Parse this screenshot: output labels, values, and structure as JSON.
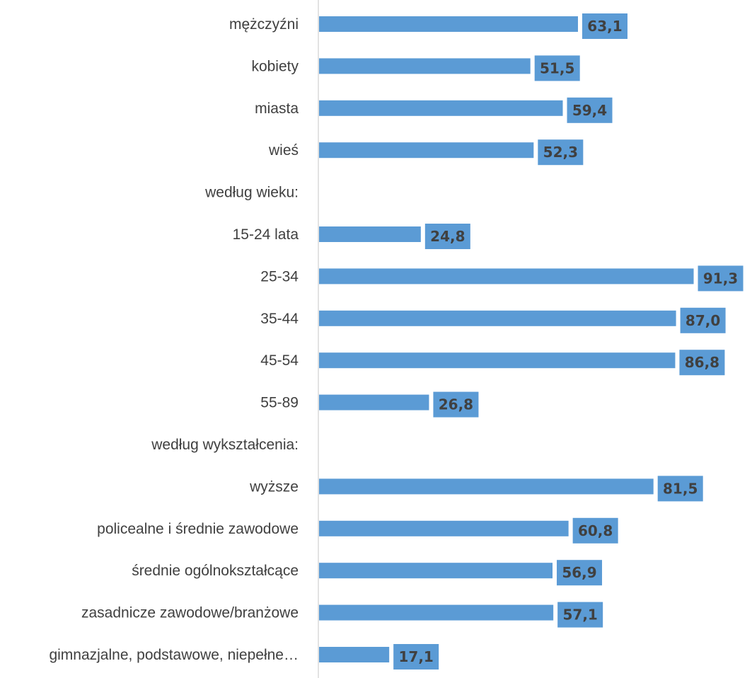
{
  "chart_data": {
    "type": "bar",
    "orientation": "horizontal",
    "categories": [
      "mężczyźni",
      "kobiety",
      "miasta",
      "wieś",
      "według wieku:",
      "15-24 lata",
      "25-34",
      "35-44",
      "45-54",
      "55-89",
      "według wykształcenia:",
      "wyższe",
      "policealne i średnie zawodowe",
      "średnie ogólnokształcące",
      "zasadnicze zawodowe/branżowe",
      "gimnazjalne, podstawowe, niepełne…"
    ],
    "values": [
      63.1,
      51.5,
      59.4,
      52.3,
      null,
      24.8,
      91.3,
      87.0,
      86.8,
      26.8,
      null,
      81.5,
      60.8,
      56.9,
      57.1,
      17.1
    ],
    "value_labels": [
      "63,1",
      "51,5",
      "59,4",
      "52,3",
      "",
      "24,8",
      "91,3",
      "87,0",
      "86,8",
      "26,8",
      "",
      "81,5",
      "60,8",
      "56,9",
      "57,1",
      "17,1"
    ],
    "xlim": [
      0,
      100
    ],
    "grid": false,
    "colors": {
      "bar": "#5B9BD5",
      "label_box": "#5B9BD5",
      "text": "#404040",
      "axis": "#D9D9D9"
    }
  }
}
